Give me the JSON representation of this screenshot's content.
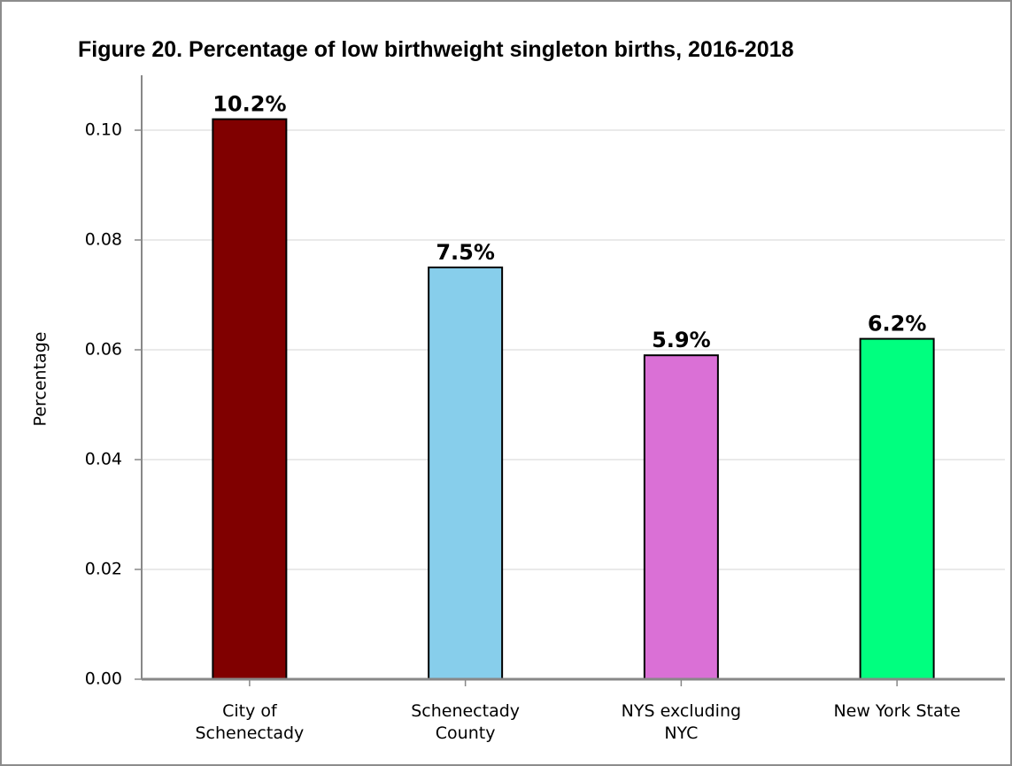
{
  "chart_data": {
    "type": "bar",
    "title": "Figure 20. Percentage of low birthweight singleton births, 2016-2018",
    "y_label": "Percentage",
    "categories": [
      "City of Schenectady",
      "Schenectady County",
      "NYS excluding NYC",
      "New York State"
    ],
    "values": [
      0.102,
      0.075,
      0.059,
      0.062
    ],
    "value_labels": [
      "10.2%",
      "7.5%",
      "5.9%",
      "6.2%"
    ],
    "colors": [
      "#800000",
      "#87ceeb",
      "#da70d6",
      "#00ff7f"
    ],
    "ylim": [
      0,
      0.11
    ],
    "yticks": [
      {
        "value": 0,
        "label": "0.00"
      },
      0.02,
      0.04,
      0.06,
      0.08,
      {
        "value": 0.1,
        "label": "0.10"
      }
    ],
    "grid": true
  }
}
